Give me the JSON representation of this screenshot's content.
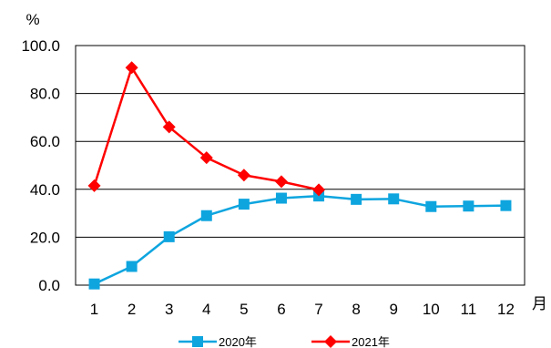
{
  "chart_data": {
    "type": "line",
    "title": "",
    "ylabel": "%",
    "xlabel": "月",
    "categories": [
      "1",
      "2",
      "3",
      "4",
      "5",
      "6",
      "7",
      "8",
      "9",
      "10",
      "11",
      "12"
    ],
    "ylim": [
      0,
      100
    ],
    "yticks": [
      "0.0",
      "20.0",
      "40.0",
      "60.0",
      "80.0",
      "100.0"
    ],
    "grid": true,
    "legend_position": "bottom",
    "series": [
      {
        "name": "2020年",
        "color": "#0EA5DF",
        "marker": "square",
        "values": [
          0.5,
          7.8,
          20.2,
          29.0,
          33.8,
          36.3,
          37.2,
          35.8,
          36.0,
          32.8,
          33.0,
          33.2
        ]
      },
      {
        "name": "2021年",
        "color": "#FF0000",
        "marker": "diamond",
        "values": [
          41.5,
          90.8,
          66.0,
          53.2,
          45.9,
          43.2,
          39.8,
          null,
          null,
          null,
          null,
          null
        ]
      }
    ]
  }
}
